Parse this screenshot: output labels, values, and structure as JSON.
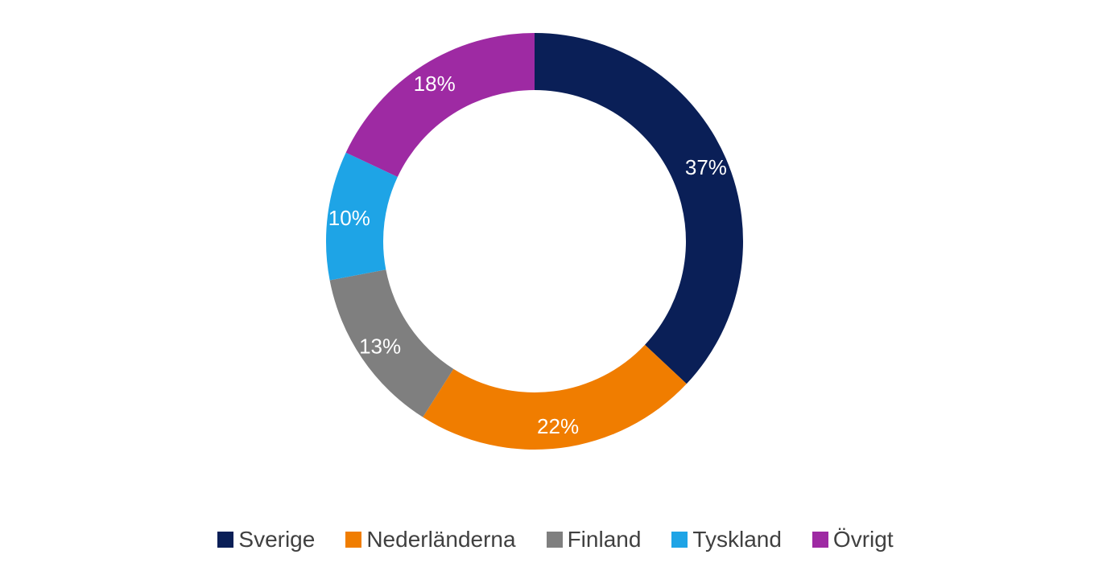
{
  "chart_data": {
    "type": "pie",
    "style": "donut",
    "title": "",
    "categories": [
      "Sverige",
      "Nederländerna",
      "Finland",
      "Tyskland",
      "Övrigt"
    ],
    "values": [
      37,
      22,
      13,
      10,
      18
    ],
    "labels": [
      "37%",
      "22%",
      "13%",
      "10%",
      "18%"
    ],
    "colors": [
      "#0a1f57",
      "#f07d00",
      "#7f7f7f",
      "#1ea4e6",
      "#9e2aa3"
    ],
    "legend_position": "bottom",
    "start_angle": "top, clockwise"
  }
}
